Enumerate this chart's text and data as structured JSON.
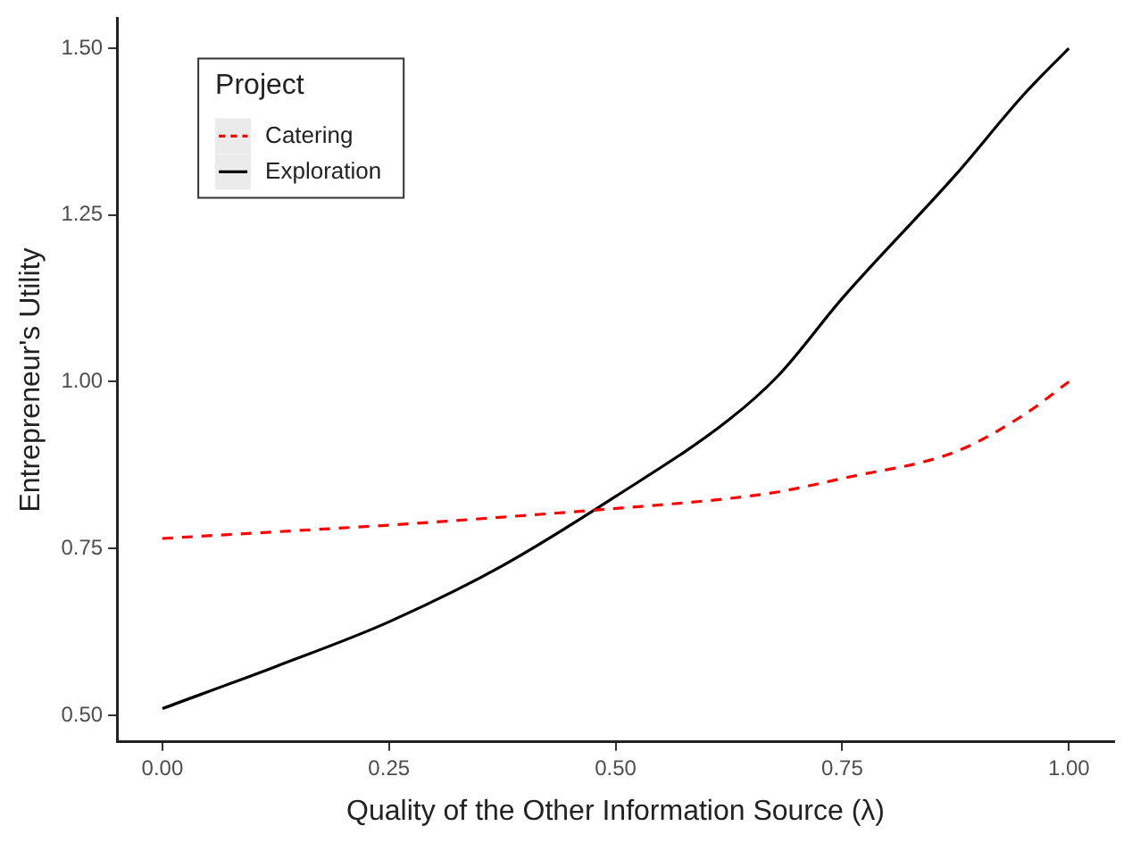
{
  "chart_data": {
    "type": "line",
    "xlabel": "Quality of the Other Information Source (λ)",
    "ylabel": "Entrepreneur's Utility",
    "legend_title": "Project",
    "legend": "top left",
    "grid": false,
    "marker": "none",
    "xlim": [
      -0.05,
      1.05
    ],
    "xticks": [
      {
        "value": 0,
        "label": "0.00"
      },
      {
        "value": 0.25,
        "label": "0.25"
      },
      {
        "value": 0.5,
        "label": "0.50"
      },
      {
        "value": 0.75,
        "label": "0.75"
      },
      {
        "value": 1,
        "label": "1.00"
      }
    ],
    "ylim": [
      0.46,
      1.545
    ],
    "yticks": [
      {
        "value": 0.5,
        "label": "0.50"
      },
      {
        "value": 0.75,
        "label": "0.75"
      },
      {
        "value": 1,
        "label": "1.00"
      },
      {
        "value": 1.25,
        "label": "1.25"
      },
      {
        "value": 1.5,
        "label": "1.50"
      }
    ],
    "x": [
      0,
      0.125,
      0.25,
      0.375,
      0.5,
      0.625,
      0.68,
      0.75,
      0.875,
      0.95,
      1
    ],
    "series": [
      {
        "name": "Catering",
        "color": "#ff0000",
        "line_style": "dashed",
        "values": [
          0.765,
          0.775,
          0.785,
          0.797,
          0.81,
          0.825,
          0.835,
          0.855,
          0.895,
          0.95,
          1.0
        ]
      },
      {
        "name": "Exploration",
        "color": "#000000",
        "line_style": "solid",
        "values": [
          0.51,
          0.573,
          0.64,
          0.724,
          0.828,
          0.943,
          1.01,
          1.125,
          1.31,
          1.43,
          1.5
        ]
      }
    ]
  }
}
